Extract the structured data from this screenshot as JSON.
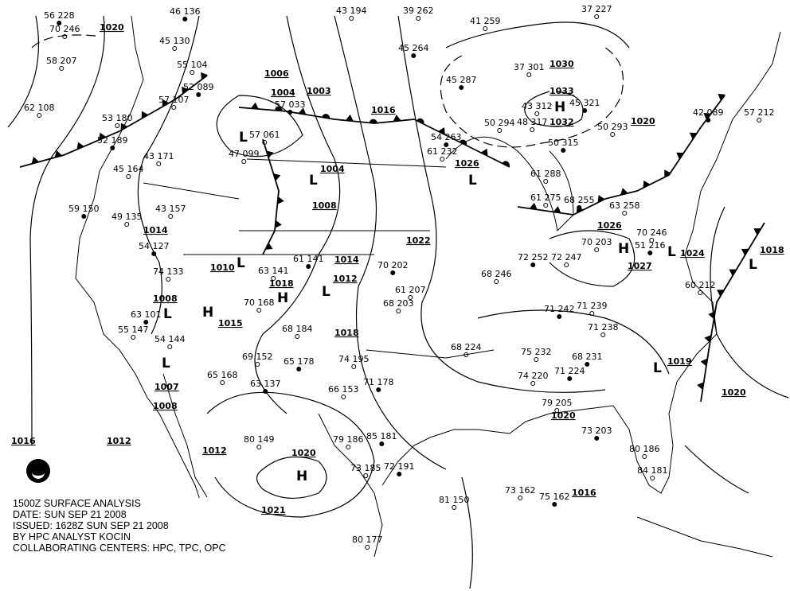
{
  "caption": {
    "line1": "1500Z SURFACE ANALYSIS",
    "line2": "DATE: SUN SEP 21 2008",
    "line3": "ISSUED: 1628Z SUN SEP 21 2008",
    "line4": "BY HPC ANALYST KOCIN",
    "line5": "COLLABORATING CENTERS: HPC, TPC, OPC"
  },
  "logo": "NOAA",
  "centers": [
    {
      "type": "L",
      "pressure": "1004"
    },
    {
      "type": "L",
      "pressure": "1004"
    },
    {
      "type": "L",
      "pressure": "1010"
    },
    {
      "type": "H",
      "pressure": "1018"
    },
    {
      "type": "L",
      "pressure": "1012"
    },
    {
      "type": "H",
      "pressure": "1015"
    },
    {
      "type": "L",
      "pressure": "1008"
    },
    {
      "type": "L",
      "pressure": "1007"
    },
    {
      "type": "H",
      "pressure": "1020"
    },
    {
      "type": "H",
      "pressure": "1033"
    },
    {
      "type": "L",
      "pressure": "1026"
    },
    {
      "type": "H",
      "pressure": "1027"
    },
    {
      "type": "L",
      "pressure": "1024"
    },
    {
      "type": "L",
      "pressure": "1018"
    },
    {
      "type": "L",
      "pressure": "1019"
    }
  ],
  "isobar_labels": [
    "1020",
    "1006",
    "1003",
    "1008",
    "1014",
    "1016",
    "1018",
    "1012",
    "1008",
    "1012",
    "1016",
    "1021",
    "1032",
    "1030",
    "1020",
    "1022",
    "1026",
    "1020",
    "1020",
    "1016",
    "1014"
  ],
  "stations": [
    "56 228",
    "58 207",
    "62 108",
    "46 136",
    "45 130",
    "55 104",
    "52 089",
    "57 107",
    "53 180",
    "52 189",
    "43 171",
    "45 164",
    "59 150",
    "49 135",
    "43 157",
    "54 127",
    "57 061",
    "47 099",
    "57 033",
    "43 194",
    "39 262",
    "45 264",
    "41 259",
    "37 227",
    "45 287",
    "37 301",
    "43 312",
    "45 321",
    "48 317",
    "50 294",
    "50 315",
    "50 293",
    "61 232",
    "54 263",
    "61 288",
    "61 275",
    "68 255",
    "63 258",
    "70 203",
    "61 141",
    "63 141",
    "70 168",
    "70 202",
    "61 207",
    "68 203",
    "72 252",
    "72 247",
    "68 246",
    "71 242",
    "71 239",
    "71 238",
    "68 231",
    "75 232",
    "74 220",
    "71 224",
    "68 224",
    "79 205",
    "73 203",
    "80 186",
    "84 181",
    "85 181",
    "79 186",
    "73 185",
    "72 191",
    "80 177",
    "73 162",
    "75 162",
    "81 150",
    "80 149",
    "63 137",
    "69 152",
    "66 153",
    "71 178",
    "74 195",
    "68 184",
    "65 178",
    "65 168",
    "74 133",
    "63 101",
    "55 147",
    "54 144",
    "42 089",
    "57 212",
    "60 212",
    "51 216",
    "70 246",
    "70 246"
  ],
  "colors": {
    "ink": "#000000",
    "background": "#ffffff"
  }
}
